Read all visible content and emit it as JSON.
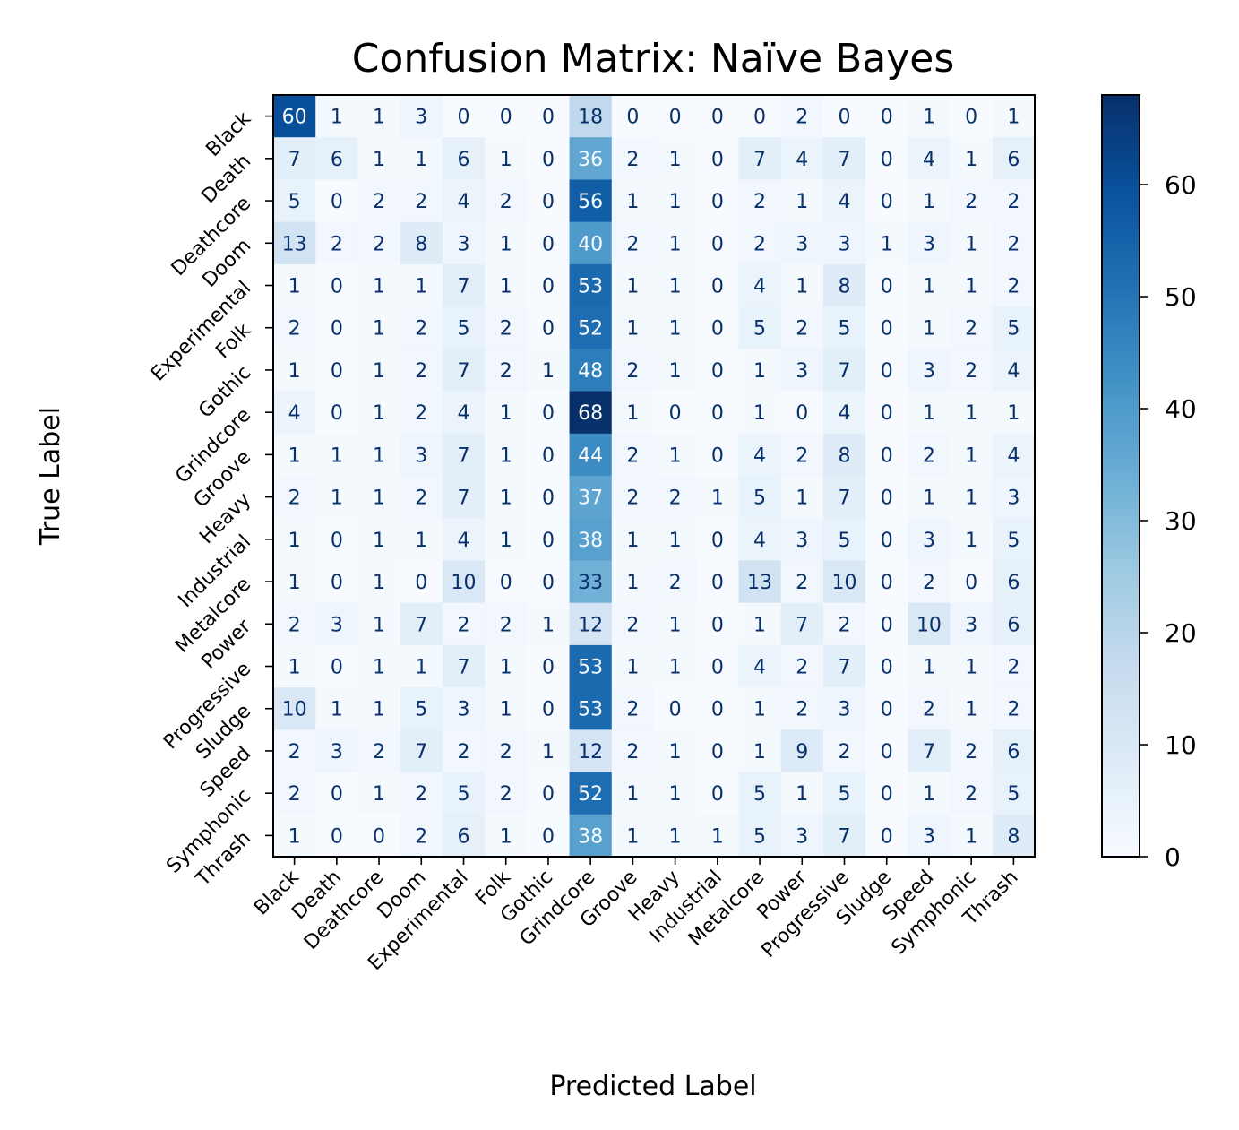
{
  "chart_data": {
    "type": "heatmap",
    "title": "Confusion Matrix: Naïve Bayes",
    "xlabel": "Predicted Label",
    "ylabel": "True Label",
    "x_categories": [
      "Black",
      "Death",
      "Deathcore",
      "Doom",
      "Experimental",
      "Folk",
      "Gothic",
      "Grindcore",
      "Groove",
      "Heavy",
      "Industrial",
      "Metalcore",
      "Power",
      "Progressive",
      "Sludge",
      "Speed",
      "Symphonic",
      "Thrash"
    ],
    "y_categories": [
      "Black",
      "Death",
      "Deathcore",
      "Doom",
      "Experimental",
      "Folk",
      "Gothic",
      "Grindcore",
      "Groove",
      "Heavy",
      "Industrial",
      "Metalcore",
      "Power",
      "Progressive",
      "Sludge",
      "Speed",
      "Symphonic",
      "Thrash"
    ],
    "matrix": [
      [
        60,
        1,
        1,
        3,
        0,
        0,
        0,
        18,
        0,
        0,
        0,
        0,
        2,
        0,
        0,
        1,
        0,
        1
      ],
      [
        7,
        6,
        1,
        1,
        6,
        1,
        0,
        36,
        2,
        1,
        0,
        7,
        4,
        7,
        0,
        4,
        1,
        6
      ],
      [
        5,
        0,
        2,
        2,
        4,
        2,
        0,
        56,
        1,
        1,
        0,
        2,
        1,
        4,
        0,
        1,
        2,
        2
      ],
      [
        13,
        2,
        2,
        8,
        3,
        1,
        0,
        40,
        2,
        1,
        0,
        2,
        3,
        3,
        1,
        3,
        1,
        2
      ],
      [
        1,
        0,
        1,
        1,
        7,
        1,
        0,
        53,
        1,
        1,
        0,
        4,
        1,
        8,
        0,
        1,
        1,
        2
      ],
      [
        2,
        0,
        1,
        2,
        5,
        2,
        0,
        52,
        1,
        1,
        0,
        5,
        2,
        5,
        0,
        1,
        2,
        5
      ],
      [
        1,
        0,
        1,
        2,
        7,
        2,
        1,
        48,
        2,
        1,
        0,
        1,
        3,
        7,
        0,
        3,
        2,
        4
      ],
      [
        4,
        0,
        1,
        2,
        4,
        1,
        0,
        68,
        1,
        0,
        0,
        1,
        0,
        4,
        0,
        1,
        1,
        1
      ],
      [
        1,
        1,
        1,
        3,
        7,
        1,
        0,
        44,
        2,
        1,
        0,
        4,
        2,
        8,
        0,
        2,
        1,
        4
      ],
      [
        2,
        1,
        1,
        2,
        7,
        1,
        0,
        37,
        2,
        2,
        1,
        5,
        1,
        7,
        0,
        1,
        1,
        3
      ],
      [
        1,
        0,
        1,
        1,
        4,
        1,
        0,
        38,
        1,
        1,
        0,
        4,
        3,
        5,
        0,
        3,
        1,
        5
      ],
      [
        1,
        0,
        1,
        0,
        10,
        0,
        0,
        33,
        1,
        2,
        0,
        13,
        2,
        10,
        0,
        2,
        0,
        6
      ],
      [
        2,
        3,
        1,
        7,
        2,
        2,
        1,
        12,
        2,
        1,
        0,
        1,
        7,
        2,
        0,
        10,
        3,
        6
      ],
      [
        1,
        0,
        1,
        1,
        7,
        1,
        0,
        53,
        1,
        1,
        0,
        4,
        2,
        7,
        0,
        1,
        1,
        2
      ],
      [
        10,
        1,
        1,
        5,
        3,
        1,
        0,
        53,
        2,
        0,
        0,
        1,
        2,
        3,
        0,
        2,
        1,
        2
      ],
      [
        2,
        3,
        2,
        7,
        2,
        2,
        1,
        12,
        2,
        1,
        0,
        1,
        9,
        2,
        0,
        7,
        2,
        6
      ],
      [
        2,
        0,
        1,
        2,
        5,
        2,
        0,
        52,
        1,
        1,
        0,
        5,
        1,
        5,
        0,
        1,
        2,
        5
      ],
      [
        1,
        0,
        0,
        2,
        6,
        1,
        0,
        38,
        1,
        1,
        1,
        5,
        3,
        7,
        0,
        3,
        1,
        8
      ]
    ],
    "colormap": "Blues",
    "vmin": 0,
    "vmax": 68,
    "colorbar_ticks": [
      0,
      10,
      20,
      30,
      40,
      50,
      60
    ],
    "colors": {
      "low": "#f7fbff",
      "high": "#08306b",
      "text_dark": "#08306b",
      "text_light": "#f7fbff"
    }
  }
}
